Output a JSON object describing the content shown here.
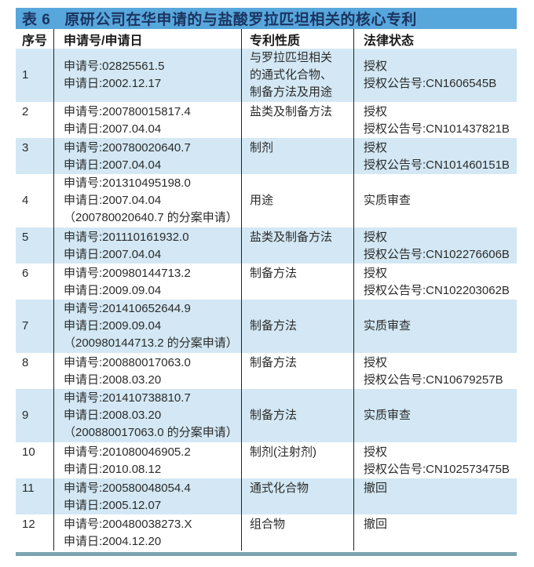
{
  "table": {
    "label": "表 6",
    "title": "原研公司在华申请的与盐酸罗拉匹坦相关的核心专利"
  },
  "columns": {
    "no": "序号",
    "application": "申请号/申请日",
    "nature": "专利性质",
    "status": "法律状态"
  },
  "colors": {
    "title_bar_bg": "#57A7DC",
    "title_text": "#1C3461",
    "shaded_row_bg": "#D3E8F4",
    "divider": "#222222",
    "bottom_bar": "#7CA4B0"
  },
  "rows": [
    {
      "no": "1",
      "app_lines": [
        "申请号:02825561.5",
        "申请日:2002.12.17"
      ],
      "nature_lines": [
        "与罗拉匹坦相关",
        "的通式化合物、",
        "制备方法及用途"
      ],
      "status_lines": [
        "授权",
        "授权公告号:CN1606545B"
      ],
      "shaded": true
    },
    {
      "no": "2",
      "app_lines": [
        "申请号:200780015817.4",
        "申请日:2007.04.04"
      ],
      "nature_lines": [
        "盐类及制备方法"
      ],
      "status_lines": [
        "授权",
        "授权公告号:CN101437821B"
      ],
      "shaded": false
    },
    {
      "no": "3",
      "app_lines": [
        "申请号:200780020640.7",
        "申请日:2007.04.04"
      ],
      "nature_lines": [
        "制剂"
      ],
      "status_lines": [
        "授权",
        "授权公告号:CN101460151B"
      ],
      "shaded": true
    },
    {
      "no": "4",
      "app_lines": [
        "申请号:201310495198.0",
        "申请日:2007.04.04",
        "（200780020640.7 的分案申请）"
      ],
      "nature_lines": [
        "用途"
      ],
      "status_lines": [
        "实质审查"
      ],
      "shaded": false
    },
    {
      "no": "5",
      "app_lines": [
        "申请号:201110161932.0",
        "申请日:2007.04.04"
      ],
      "nature_lines": [
        "盐类及制备方法"
      ],
      "status_lines": [
        "授权",
        "授权公告号:CN102276606B"
      ],
      "shaded": true
    },
    {
      "no": "6",
      "app_lines": [
        "申请号:200980144713.2",
        "申请日:2009.09.04"
      ],
      "nature_lines": [
        "制备方法"
      ],
      "status_lines": [
        "授权",
        "授权公告号:CN102203062B"
      ],
      "shaded": false
    },
    {
      "no": "7",
      "app_lines": [
        "申请号:201410652644.9",
        "申请日:2009.09.04",
        "（200980144713.2 的分案申请）"
      ],
      "nature_lines": [
        "制备方法"
      ],
      "status_lines": [
        "实质审查"
      ],
      "shaded": true
    },
    {
      "no": "8",
      "app_lines": [
        "申请号:200880017063.0",
        "申请日:2008.03.20"
      ],
      "nature_lines": [
        "制备方法"
      ],
      "status_lines": [
        "授权",
        "授权公告号:CN10679257B"
      ],
      "shaded": false
    },
    {
      "no": "9",
      "app_lines": [
        "申请号:201410738810.7",
        "申请日:2008.03.20",
        "（200880017063.0 的分案申请）"
      ],
      "nature_lines": [
        "制备方法"
      ],
      "status_lines": [
        "实质审查"
      ],
      "shaded": true
    },
    {
      "no": "10",
      "app_lines": [
        "申请号:201080046905.2",
        "申请日:2010.08.12"
      ],
      "nature_lines": [
        "制剂(注射剂)"
      ],
      "status_lines": [
        "授权",
        "授权公告号:CN102573475B"
      ],
      "shaded": false
    },
    {
      "no": "11",
      "app_lines": [
        "申请号:200580048054.4",
        "申请日:2005.12.07"
      ],
      "nature_lines": [
        "通式化合物"
      ],
      "status_lines": [
        "撤回"
      ],
      "shaded": true
    },
    {
      "no": "12",
      "app_lines": [
        "申请号:200480038273.X",
        "申请日:2004.12.20"
      ],
      "nature_lines": [
        "组合物"
      ],
      "status_lines": [
        "撤回"
      ],
      "shaded": false
    }
  ]
}
